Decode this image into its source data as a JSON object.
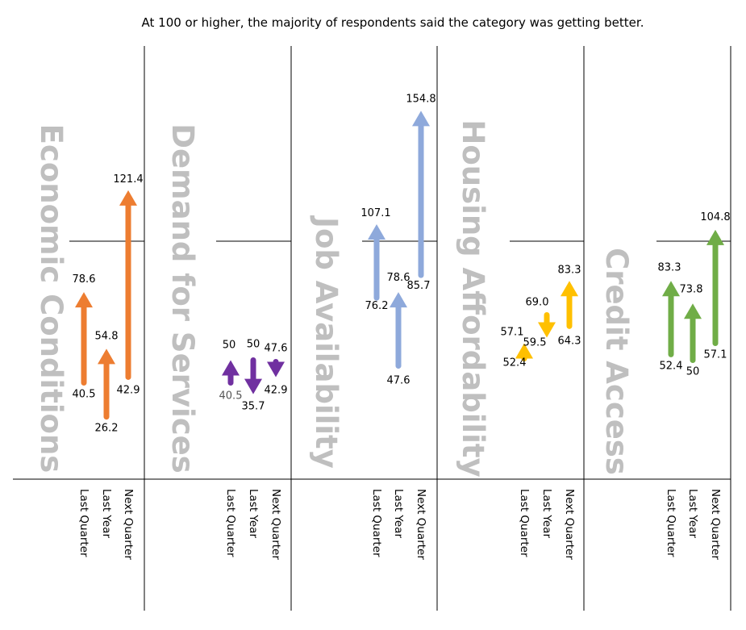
{
  "chart_data": {
    "type": "arrow",
    "title": "At 100 or higher, the majority of respondents said the category was getting better.",
    "reference_value": 100,
    "x_labels": [
      "Last Quarter",
      "Last Year",
      "Next Quarter"
    ],
    "groups": [
      {
        "name": "Economic Conditions",
        "color": "#ED7D31",
        "arrows": [
          {
            "label": "Last Quarter",
            "from": 40.5,
            "to": 78.6
          },
          {
            "label": "Last Year",
            "from": 26.2,
            "to": 54.8
          },
          {
            "label": "Next Quarter",
            "from": 42.9,
            "to": 121.4
          }
        ]
      },
      {
        "name": "Demand for Services",
        "color": "#7030A0",
        "arrows": [
          {
            "label": "Last Quarter",
            "from": 40.5,
            "to": 50
          },
          {
            "label": "Last Year",
            "from": 50,
            "to": 35.7
          },
          {
            "label": "Next Quarter",
            "from": 47.6,
            "to": 42.9
          }
        ]
      },
      {
        "name": "Job Availability",
        "color": "#8EA9DB",
        "arrows": [
          {
            "label": "Last Quarter",
            "from": 76.2,
            "to": 107.1
          },
          {
            "label": "Last Year",
            "from": 47.6,
            "to": 78.6
          },
          {
            "label": "Next Quarter",
            "from": 85.7,
            "to": 154.8
          }
        ]
      },
      {
        "name": "Housing Affordability",
        "color": "#FFC000",
        "arrows": [
          {
            "label": "Last Quarter",
            "from": 52.4,
            "to": 57.1
          },
          {
            "label": "Last Year",
            "from": 69.0,
            "to": 59.5
          },
          {
            "label": "Next Quarter",
            "from": 64.3,
            "to": 83.3
          }
        ]
      },
      {
        "name": "Credit Access",
        "color": "#70AD47",
        "arrows": [
          {
            "label": "Last Quarter",
            "from": 52.4,
            "to": 83.3
          },
          {
            "label": "Last Year",
            "from": 50.0,
            "to": 73.8
          },
          {
            "label": "Next Quarter",
            "from": 57.1,
            "to": 104.8
          }
        ]
      }
    ]
  }
}
